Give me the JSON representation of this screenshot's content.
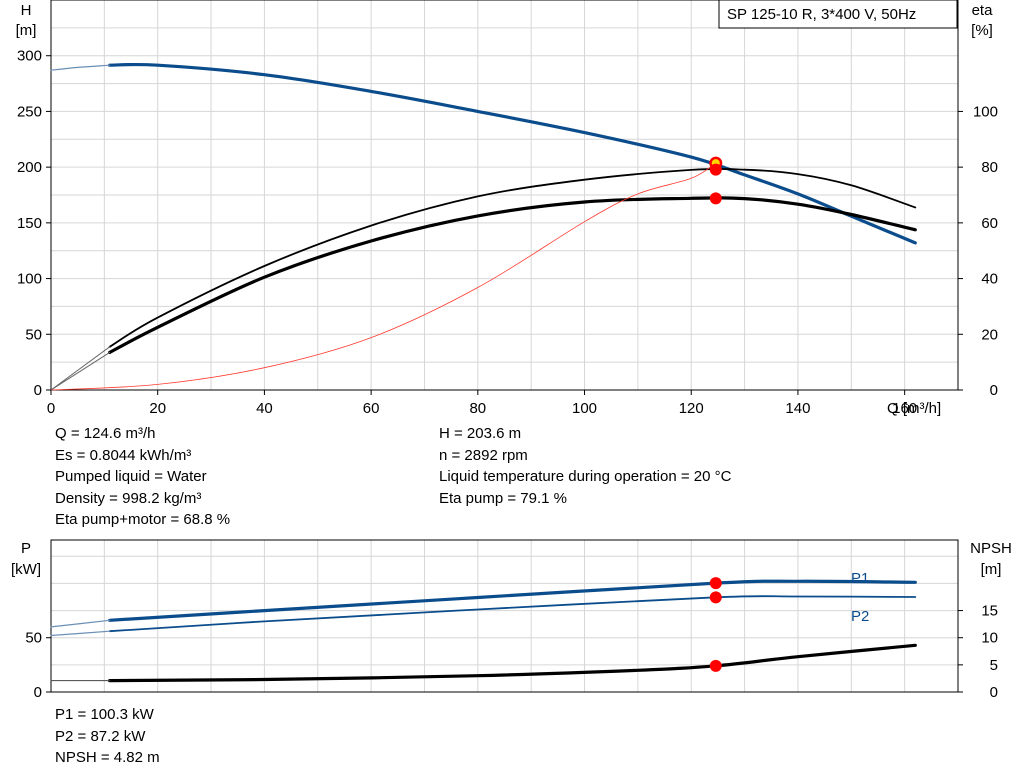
{
  "chart_data": [
    {
      "type": "line",
      "title": "SP 125-10 R, 3*400 V, 50Hz",
      "xlabel": "Q [m³/h]",
      "ylabel_left": [
        "H",
        "[m]"
      ],
      "ylabel_right": [
        "eta",
        "[%]"
      ],
      "xlim": [
        0,
        170
      ],
      "x_ticks": [
        0,
        20,
        40,
        60,
        80,
        100,
        120,
        140,
        160
      ],
      "ylim_left": [
        0,
        350
      ],
      "y_ticks_left": [
        0,
        50,
        100,
        150,
        200,
        250,
        300
      ],
      "ylim_right": [
        0,
        140
      ],
      "y_ticks_right": [
        0,
        20,
        40,
        60,
        80,
        100
      ],
      "grid": true,
      "colors": {
        "head": "#0b4d8c",
        "eta": "#000000",
        "system": "#ff3b30",
        "duty_point": "#ff0000",
        "duty_point_inner": "#ffd700"
      },
      "series": [
        {
          "key": "head",
          "axis": "left",
          "width": 3.2,
          "x": [
            11,
            20,
            40,
            60,
            80,
            100,
            120,
            130,
            140,
            150,
            162
          ],
          "y": [
            291.5,
            291.5,
            283,
            268,
            250,
            231,
            209,
            193,
            176,
            156,
            132
          ]
        },
        {
          "key": "head_dim",
          "axis": "left",
          "width": 1.2,
          "color": "#6a8fb5",
          "x": [
            0,
            5,
            11
          ],
          "y": [
            287,
            289.5,
            291.5
          ]
        },
        {
          "key": "eta_pump",
          "axis": "right",
          "width": 1.8,
          "x": [
            11,
            20,
            40,
            60,
            80,
            100,
            120,
            130,
            140,
            150,
            162
          ],
          "y": [
            15.5,
            26,
            44.5,
            59,
            69.5,
            75.5,
            79,
            79.1,
            77.5,
            73.5,
            65.5
          ]
        },
        {
          "key": "eta_total",
          "axis": "right",
          "width": 3.2,
          "x": [
            11,
            20,
            40,
            60,
            80,
            100,
            120,
            130,
            140,
            150,
            162
          ],
          "y": [
            13.5,
            22.5,
            40.5,
            53.5,
            62.5,
            67.5,
            68.8,
            68.7,
            66.7,
            63,
            57.5
          ]
        },
        {
          "key": "eta_dim_1",
          "axis": "right",
          "width": 1,
          "color": "#666666",
          "x": [
            0,
            11
          ],
          "y": [
            0,
            15.5
          ]
        },
        {
          "key": "eta_dim_2",
          "axis": "right",
          "width": 1,
          "color": "#666666",
          "x": [
            0,
            11
          ],
          "y": [
            0,
            13.5
          ]
        },
        {
          "key": "system",
          "axis": "left",
          "width": 0.8,
          "x": [
            0,
            20,
            40,
            60,
            80,
            100,
            110,
            120,
            124.6
          ],
          "y": [
            0,
            5,
            20,
            47,
            92,
            151,
            176,
            190,
            203.6
          ]
        }
      ],
      "points": [
        {
          "x": 124.6,
          "y": 203.6,
          "axis": "left",
          "r": 6.5,
          "color": "#ff0000",
          "inner": "#ffd700"
        },
        {
          "x": 124.6,
          "y": 79.1,
          "axis": "right",
          "r": 6,
          "color": "#ff0000"
        },
        {
          "x": 124.6,
          "y": 68.8,
          "axis": "right",
          "r": 6,
          "color": "#ff0000"
        }
      ]
    },
    {
      "type": "line",
      "ylabel_left": [
        "P",
        "[kW]"
      ],
      "ylabel_right": [
        "NPSH",
        "[m]"
      ],
      "xlim": [
        0,
        170
      ],
      "ylim_left": [
        0,
        140
      ],
      "y_ticks_left": [
        0,
        50
      ],
      "ylim_right": [
        0,
        28
      ],
      "y_ticks_right": [
        0,
        5,
        10,
        15
      ],
      "grid": true,
      "series": [
        {
          "key": "P1",
          "name": "P1",
          "axis": "left",
          "width": 3.2,
          "x": [
            11,
            40,
            80,
            124.6,
            140,
            162
          ],
          "y": [
            66,
            75,
            87,
            100.3,
            102,
            101
          ]
        },
        {
          "key": "P1_dim",
          "axis": "left",
          "width": 1.2,
          "color": "#6a8fb5",
          "x": [
            0,
            11
          ],
          "y": [
            60,
            66
          ]
        },
        {
          "key": "P2",
          "name": "P2",
          "axis": "left",
          "width": 1.8,
          "x": [
            11,
            40,
            80,
            124.6,
            140,
            162
          ],
          "y": [
            56,
            65,
            76,
            87.2,
            88,
            87.5
          ]
        },
        {
          "key": "P2_dim",
          "axis": "left",
          "width": 1.2,
          "color": "#6a8fb5",
          "x": [
            0,
            11
          ],
          "y": [
            52,
            56
          ]
        },
        {
          "key": "NPSH",
          "axis": "right",
          "width": 3.2,
          "x": [
            11,
            40,
            80,
            110,
            124.6,
            140,
            162
          ],
          "y": [
            2.1,
            2.3,
            3,
            4,
            4.82,
            6.5,
            8.6
          ]
        },
        {
          "key": "NPSH_dim",
          "axis": "right",
          "width": 1,
          "color": "#444444",
          "x": [
            0,
            11
          ],
          "y": [
            2.1,
            2.1
          ]
        }
      ],
      "points": [
        {
          "x": 124.6,
          "y": 100.3,
          "axis": "left",
          "r": 6,
          "color": "#ff0000"
        },
        {
          "x": 124.6,
          "y": 87.2,
          "axis": "left",
          "r": 6,
          "color": "#ff0000"
        },
        {
          "x": 124.6,
          "y": 4.82,
          "axis": "right",
          "r": 6,
          "color": "#ff0000"
        }
      ]
    }
  ],
  "info_left": [
    "Q = 124.6 m³/h",
    "Es = 0.8044 kWh/m³",
    "Pumped liquid = Water",
    "Density = 998.2 kg/m³",
    "Eta pump+motor = 68.8 %"
  ],
  "info_right": [
    "H = 203.6 m",
    "n = 2892 rpm",
    "Liquid temperature during operation = 20 °C",
    "Eta pump = 79.1 %"
  ],
  "info_bottom": [
    "P1 = 100.3 kW",
    "P2 = 87.2 kW",
    "NPSH = 4.82 m"
  ]
}
